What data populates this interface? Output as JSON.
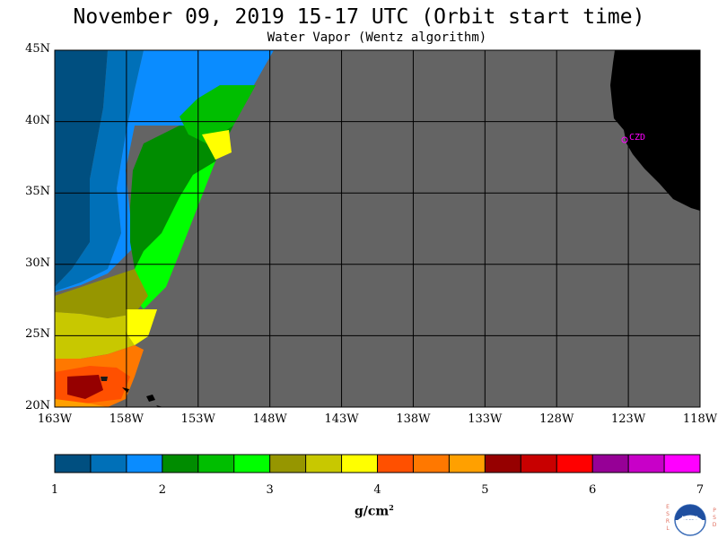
{
  "header": {
    "title": "November 09, 2019  15-17 UTC  (Orbit start time)",
    "subtitle": "Water Vapor (Wentz algorithm)"
  },
  "map": {
    "lat_labels": [
      "45N",
      "40N",
      "35N",
      "30N",
      "25N",
      "20N"
    ],
    "lon_labels": [
      "163W",
      "158W",
      "153W",
      "148W",
      "143W",
      "138W",
      "133W",
      "128W",
      "123W",
      "118W"
    ],
    "station_label": "CZD",
    "colors": {
      "no_data": "#646464",
      "land": "#000000",
      "grid": "#000000",
      "station": "#ff00ff"
    }
  },
  "colorbar": {
    "ticks": [
      "1",
      "2",
      "3",
      "4",
      "5",
      "6",
      "7"
    ],
    "unit": "g/cm",
    "unit_exponent": "2",
    "colors": [
      "#004f80",
      "#0070b8",
      "#0a8cff",
      "#008c00",
      "#00be00",
      "#00ff00",
      "#969600",
      "#c8c800",
      "#ffff00",
      "#ff5000",
      "#ff7800",
      "#ffa000",
      "#960000",
      "#c80000",
      "#ff0000",
      "#960096",
      "#c800c8",
      "#ff00ff"
    ]
  },
  "logo": {
    "left_letters": "ESRL",
    "right_letters": "PSD",
    "center": "NOAA"
  }
}
